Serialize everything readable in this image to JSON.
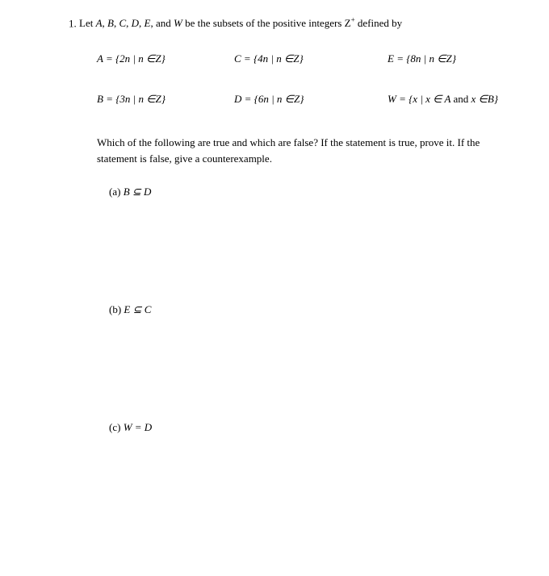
{
  "problem": {
    "number": "1.",
    "intro": "Let A, B, C, D, E, and W  be the subsets of the positive integers Z",
    "intro_sup": "+",
    "intro_end": " defined by"
  },
  "definitions": {
    "A": "A = {2n | n ∈Z}",
    "C": "C = {4n | n ∈Z}",
    "E": "E = {8n | n ∈Z}",
    "B": "B = {3n | n ∈Z}",
    "D": "D = {6n | n ∈Z}",
    "W": "W = {x | x ∈ A and x ∈B}"
  },
  "question": "Which of the following are true and which are false? If the statement is true, prove it. If the statement is false, give a counterexample.",
  "subparts": {
    "a": {
      "label": "(a)",
      "statement": "B ⊆ D"
    },
    "b": {
      "label": "(b)",
      "statement": "E ⊆ C"
    },
    "c": {
      "label": "(c)",
      "statement": "W  = D"
    }
  }
}
